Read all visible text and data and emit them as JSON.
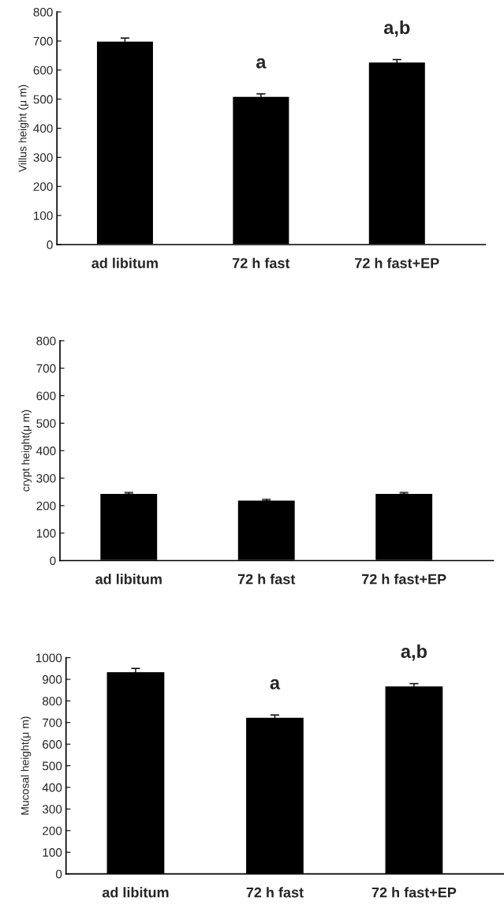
{
  "chart_data": [
    {
      "type": "bar",
      "ylabel": "Villus height (μ m)",
      "categories": [
        "ad libitum",
        "72 h fast",
        "72 h fast+EP"
      ],
      "values": [
        700,
        510,
        628
      ],
      "errors": [
        10,
        8,
        8
      ],
      "color": "#000000",
      "ylim": [
        0,
        800
      ],
      "yticks": [
        0,
        100,
        200,
        300,
        400,
        500,
        600,
        700,
        800
      ],
      "grid": false,
      "annotations": [
        {
          "text": "a",
          "x": "72 h fast",
          "y": 510
        },
        {
          "text": "a,b",
          "x": "72 h fast+EP",
          "y": 628
        }
      ]
    },
    {
      "type": "bar",
      "ylabel": "crypt height(μ m)",
      "categories": [
        "ad libitum",
        "72 h fast",
        "72 h fast+EP"
      ],
      "values": [
        245,
        220,
        245
      ],
      "errors": [
        3,
        3,
        3
      ],
      "color": "#000000",
      "ylim": [
        0,
        800
      ],
      "yticks": [
        0,
        100,
        200,
        300,
        400,
        500,
        600,
        700,
        800
      ],
      "grid": false
    },
    {
      "type": "bar",
      "ylabel": "Mucosal height(μ m)",
      "categories": [
        "ad libitum",
        "72 h fast",
        "72 h fast+EP"
      ],
      "values": [
        935,
        725,
        870
      ],
      "errors": [
        15,
        10,
        10
      ],
      "color": "#000000",
      "ylim": [
        0,
        1000
      ],
      "yticks": [
        0,
        100,
        200,
        300,
        400,
        500,
        600,
        700,
        800,
        900,
        1000
      ],
      "grid": false,
      "annotations": [
        {
          "text": "a",
          "x": "72 h fast",
          "y": 725
        },
        {
          "text": "a,b",
          "x": "72 h fast+EP",
          "y": 870
        }
      ]
    }
  ]
}
